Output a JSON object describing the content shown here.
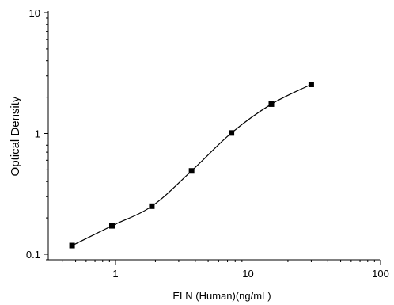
{
  "chart_data": {
    "type": "scatter",
    "xlabel": "ELN (Human)(ng/mL)",
    "ylabel": "Optical Density",
    "x_scale": "log",
    "y_scale": "log",
    "xlim": [
      0.3,
      100
    ],
    "ylim": [
      0.09,
      10
    ],
    "x_ticks": [
      {
        "value": 1,
        "label": "1"
      },
      {
        "value": 10,
        "label": "10"
      },
      {
        "value": 100,
        "label": "100"
      }
    ],
    "y_ticks": [
      {
        "value": 0.1,
        "label": "0.1"
      },
      {
        "value": 1,
        "label": "1"
      },
      {
        "value": 10,
        "label": "10"
      }
    ],
    "series": [
      {
        "marker": "square",
        "color": "#000000",
        "fit_line": true,
        "points": [
          {
            "x": 0.47,
            "y": 0.118
          },
          {
            "x": 0.94,
            "y": 0.172
          },
          {
            "x": 1.88,
            "y": 0.25
          },
          {
            "x": 3.75,
            "y": 0.49
          },
          {
            "x": 7.5,
            "y": 1.01
          },
          {
            "x": 15,
            "y": 1.75
          },
          {
            "x": 30,
            "y": 2.55
          }
        ]
      }
    ],
    "grid": false,
    "legend": "none"
  }
}
